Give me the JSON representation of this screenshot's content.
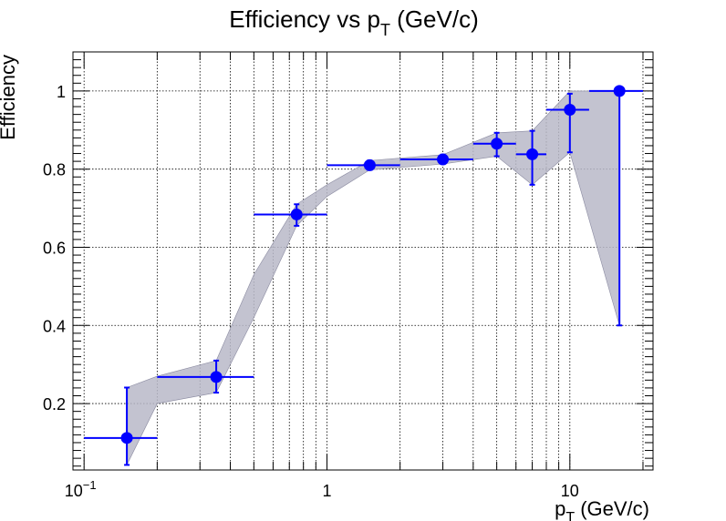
{
  "chart_data": {
    "type": "scatter",
    "title": "Efficiency vs p_T (GeV/c)",
    "title_parts": {
      "main": "Efficiency vs p",
      "sub": "T",
      "tail": " (GeV/c)"
    },
    "xlabel_parts": {
      "main": "p",
      "sub": "T",
      "tail": " (GeV/c)"
    },
    "ylabel": "Efficiency",
    "x_scale": "log",
    "xlim": [
      0.09,
      22
    ],
    "ylim": [
      0.03,
      1.1
    ],
    "grid": true,
    "x_ticks": [
      {
        "value": 0.1,
        "base": "10",
        "exp": "−1"
      },
      {
        "value": 1,
        "base": "1",
        "exp": ""
      },
      {
        "value": 10,
        "base": "10",
        "exp": ""
      }
    ],
    "y_ticks": [
      "0.2",
      "0.4",
      "0.6",
      "0.8",
      "1"
    ],
    "colors": {
      "points": "#0000ff",
      "band": "#b8b8c8",
      "band_edge": "#8a8aa0",
      "axis": "#000000"
    },
    "series": [
      {
        "points": [
          {
            "x": 0.15,
            "xlo": 0.1,
            "xhi": 0.2,
            "y": 0.112,
            "ylo": 0.043,
            "yhi": 0.241
          },
          {
            "x": 0.35,
            "xlo": 0.2,
            "xhi": 0.5,
            "y": 0.268,
            "ylo": 0.228,
            "yhi": 0.31
          },
          {
            "x": 0.75,
            "xlo": 0.5,
            "xhi": 1.0,
            "y": 0.684,
            "ylo": 0.655,
            "yhi": 0.71
          },
          {
            "x": 1.5,
            "xlo": 1.0,
            "xhi": 2.0,
            "y": 0.81,
            "ylo": 0.798,
            "yhi": 0.822
          },
          {
            "x": 3.0,
            "xlo": 2.0,
            "xhi": 4.0,
            "y": 0.825,
            "ylo": 0.813,
            "yhi": 0.837
          },
          {
            "x": 5.0,
            "xlo": 4.0,
            "xhi": 6.0,
            "y": 0.865,
            "ylo": 0.833,
            "yhi": 0.893
          },
          {
            "x": 7.0,
            "xlo": 6.0,
            "xhi": 8.0,
            "y": 0.838,
            "ylo": 0.76,
            "yhi": 0.898
          },
          {
            "x": 10.0,
            "xlo": 8.0,
            "xhi": 12.0,
            "y": 0.952,
            "ylo": 0.843,
            "yhi": 0.993
          },
          {
            "x": 16.0,
            "xlo": 12.0,
            "xhi": 20.0,
            "y": 1.0,
            "ylo": 0.4,
            "yhi": 1.0
          }
        ]
      }
    ],
    "band": {
      "x": [
        0.15,
        0.2,
        0.35,
        0.5,
        0.75,
        1.0,
        1.5,
        3.0,
        5.0,
        7.0,
        10.0,
        16.0
      ],
      "upper": [
        0.241,
        0.27,
        0.31,
        0.53,
        0.71,
        0.76,
        0.822,
        0.837,
        0.893,
        0.898,
        1.0,
        1.0
      ],
      "lower": [
        0.043,
        0.2,
        0.228,
        0.42,
        0.655,
        0.73,
        0.798,
        0.813,
        0.833,
        0.76,
        0.843,
        0.4
      ]
    }
  }
}
